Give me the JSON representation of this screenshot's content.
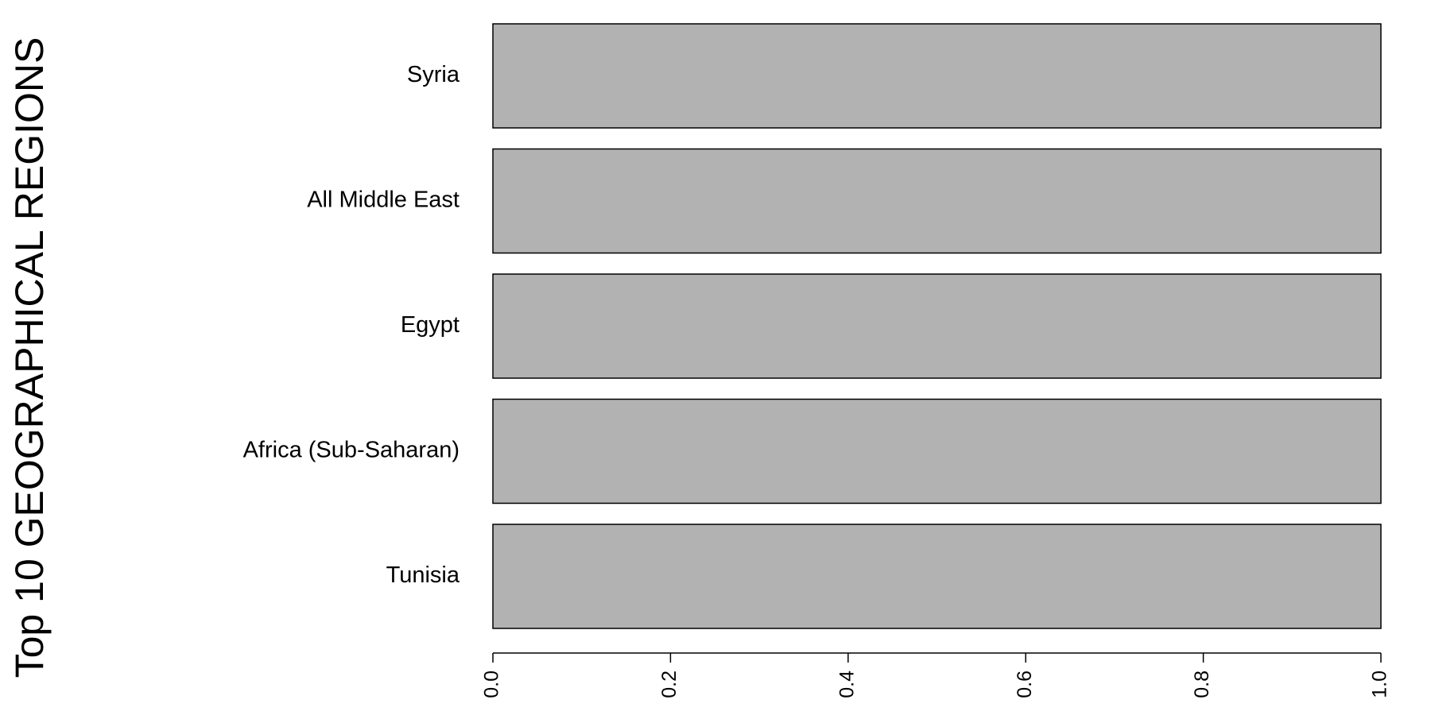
{
  "chart_data": {
    "type": "bar",
    "orientation": "horizontal",
    "categories": [
      "Syria",
      "All Middle East",
      "Egypt",
      "Africa (Sub-Saharan)",
      "Tunisia"
    ],
    "values": [
      1,
      1,
      1,
      1,
      1
    ],
    "ylabel": "Top 10 GEOGRAPHICAL REGIONS",
    "xlabel": "",
    "xlim": [
      0,
      1
    ],
    "xticks": [
      "0.0",
      "0.2",
      "0.4",
      "0.6",
      "0.8",
      "1.0"
    ],
    "grid": false,
    "colors": {
      "bar_fill": "#b2b2b2",
      "bar_stroke": "#000000",
      "background": "#ffffff"
    }
  }
}
